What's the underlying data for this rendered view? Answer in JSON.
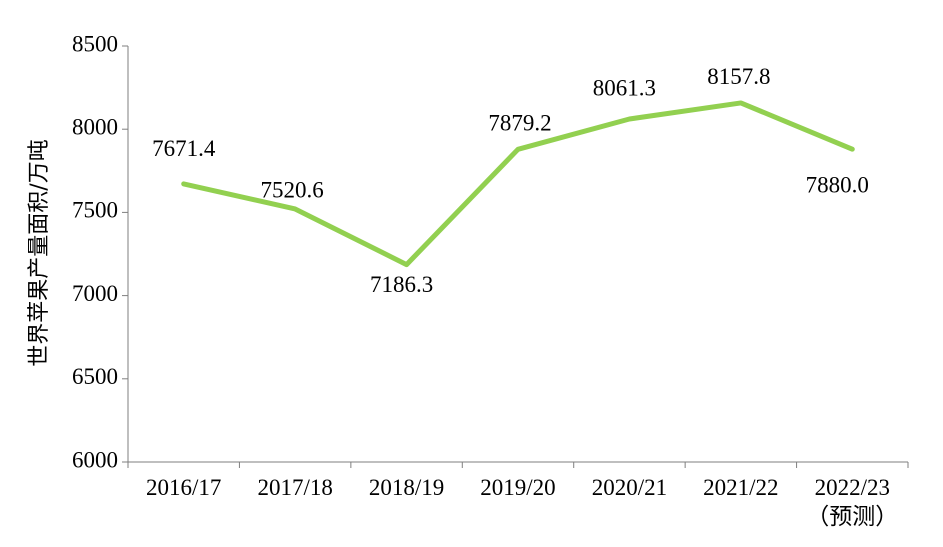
{
  "chart_data": {
    "type": "line",
    "categories": [
      "2016/17",
      "2017/18",
      "2018/19",
      "2019/20",
      "2020/21",
      "2021/22",
      "2022/23\n（预测）"
    ],
    "values": [
      7671.4,
      7520.6,
      7186.3,
      7879.2,
      8061.3,
      8157.8,
      7880.0
    ],
    "data_labels": [
      "7671.4",
      "7520.6",
      "7186.3",
      "7879.2",
      "8061.3",
      "8157.8",
      "7880.0"
    ],
    "ylabel": "世界苹果产量面积/万吨",
    "xlabel": "",
    "ylim": [
      6000,
      8500
    ],
    "yticks": [
      6000,
      6500,
      7000,
      7500,
      8000,
      8500
    ],
    "grid": false,
    "line_color": "#92d050"
  }
}
